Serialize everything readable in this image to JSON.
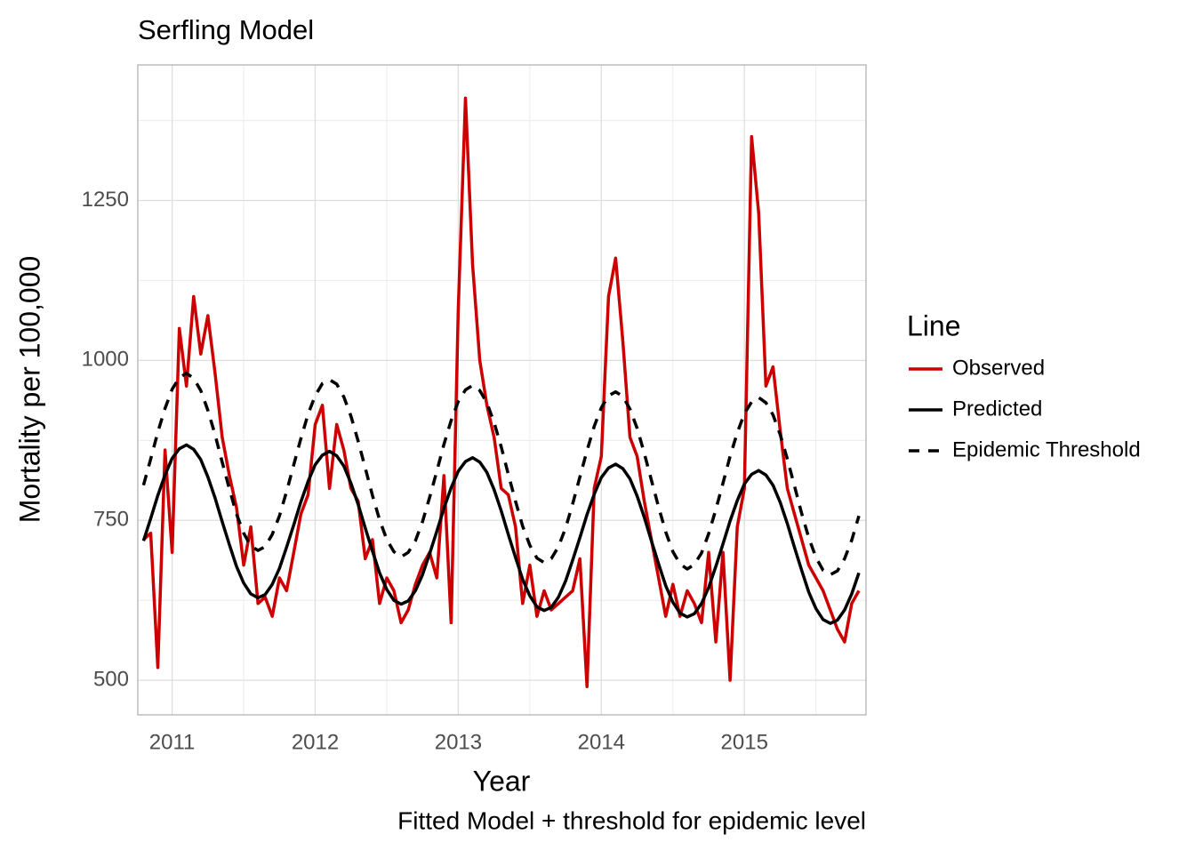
{
  "chart_data": {
    "type": "line",
    "title": "Serfling Model",
    "x_label": "Year",
    "y_label": "Mortality per 100,000",
    "caption": "Fitted Model + threshold for epidemic level",
    "legend_title": "Line",
    "legend_position": "right",
    "grid": true,
    "xlim": [
      2010.76,
      2015.85
    ],
    "xticks": [
      2011,
      2012,
      2013,
      2014,
      2015
    ],
    "ylim": [
      446,
      1462
    ],
    "yticks": [
      500,
      750,
      1000,
      1250
    ],
    "x": [
      2010.8,
      2010.85,
      2010.9,
      2010.95,
      2011,
      2011.05,
      2011.1,
      2011.15,
      2011.2,
      2011.25,
      2011.3,
      2011.35,
      2011.4,
      2011.45,
      2011.5,
      2011.55,
      2011.6,
      2011.65,
      2011.7,
      2011.75,
      2011.8,
      2011.85,
      2011.9,
      2011.95,
      2012,
      2012.05,
      2012.1,
      2012.15,
      2012.2,
      2012.25,
      2012.3,
      2012.35,
      2012.4,
      2012.45,
      2012.5,
      2012.55,
      2012.6,
      2012.65,
      2012.7,
      2012.75,
      2012.8,
      2012.85,
      2012.9,
      2012.95,
      2013,
      2013.05,
      2013.1,
      2013.15,
      2013.2,
      2013.25,
      2013.3,
      2013.35,
      2013.4,
      2013.45,
      2013.5,
      2013.55,
      2013.6,
      2013.65,
      2013.7,
      2013.75,
      2013.8,
      2013.85,
      2013.9,
      2013.95,
      2014,
      2014.05,
      2014.1,
      2014.15,
      2014.2,
      2014.25,
      2014.3,
      2014.35,
      2014.4,
      2014.45,
      2014.5,
      2014.55,
      2014.6,
      2014.65,
      2014.7,
      2014.75,
      2014.8,
      2014.85,
      2014.9,
      2014.95,
      2015,
      2015.05,
      2015.1,
      2015.15,
      2015.2,
      2015.25,
      2015.3,
      2015.35,
      2015.4,
      2015.45,
      2015.5,
      2015.55,
      2015.6,
      2015.65,
      2015.7,
      2015.75,
      2015.8
    ],
    "series": [
      {
        "name": "Observed",
        "color": "#cc0000",
        "dash": "solid",
        "values": [
          720,
          730,
          520,
          860,
          700,
          1050,
          960,
          1100,
          1010,
          1070,
          980,
          880,
          820,
          770,
          680,
          740,
          620,
          630,
          600,
          660,
          640,
          700,
          760,
          790,
          900,
          930,
          800,
          900,
          860,
          800,
          780,
          690,
          720,
          620,
          660,
          640,
          590,
          610,
          650,
          680,
          700,
          660,
          820,
          590,
          1080,
          1410,
          1150,
          1000,
          930,
          880,
          800,
          790,
          740,
          620,
          680,
          600,
          640,
          610,
          620,
          630,
          640,
          690,
          490,
          800,
          850,
          1100,
          1160,
          1030,
          880,
          850,
          780,
          720,
          660,
          600,
          650,
          600,
          640,
          620,
          590,
          700,
          560,
          700,
          500,
          740,
          800,
          1350,
          1230,
          960,
          990,
          890,
          800,
          760,
          720,
          680,
          660,
          640,
          610,
          580,
          560,
          620,
          640
        ]
      },
      {
        "name": "Predicted",
        "color": "#000000",
        "dash": "solid",
        "values": [
          718,
          753,
          789,
          821,
          847,
          862,
          868,
          861,
          845,
          818,
          785,
          748,
          712,
          678,
          652,
          635,
          629,
          634,
          650,
          675,
          708,
          743,
          779,
          811,
          837,
          852,
          858,
          851,
          835,
          808,
          775,
          738,
          702,
          668,
          642,
          625,
          619,
          624,
          640,
          665,
          698,
          733,
          769,
          801,
          827,
          842,
          848,
          841,
          825,
          798,
          765,
          728,
          692,
          658,
          632,
          615,
          609,
          614,
          630,
          655,
          688,
          723,
          759,
          791,
          817,
          832,
          838,
          831,
          815,
          788,
          755,
          718,
          682,
          648,
          622,
          605,
          599,
          604,
          620,
          645,
          678,
          713,
          749,
          781,
          807,
          822,
          828,
          821,
          805,
          778,
          745,
          708,
          672,
          638,
          612,
          595,
          589,
          594,
          610,
          635,
          668
        ]
      },
      {
        "name": "Epidemic Threshold",
        "color": "#000000",
        "dash": "dashed",
        "values": [
          805,
          846,
          888,
          925,
          955,
          973,
          980,
          972,
          953,
          922,
          884,
          841,
          799,
          760,
          730,
          710,
          703,
          709,
          728,
          757,
          795,
          837,
          878,
          916,
          945,
          964,
          970,
          963,
          943,
          913,
          874,
          832,
          789,
          751,
          720,
          701,
          693,
          700,
          718,
          748,
          786,
          827,
          869,
          906,
          936,
          954,
          961,
          953,
          934,
          903,
          865,
          822,
          780,
          741,
          711,
          691,
          684,
          690,
          709,
          738,
          776,
          818,
          859,
          897,
          926,
          945,
          951,
          944,
          924,
          894,
          855,
          813,
          771,
          732,
          701,
          682,
          674,
          681,
          699,
          729,
          767,
          808,
          850,
          887,
          917,
          935,
          942,
          934,
          915,
          884,
          846,
          804,
          761,
          723,
          692,
          672,
          665,
          671,
          690,
          719,
          757
        ]
      }
    ]
  }
}
